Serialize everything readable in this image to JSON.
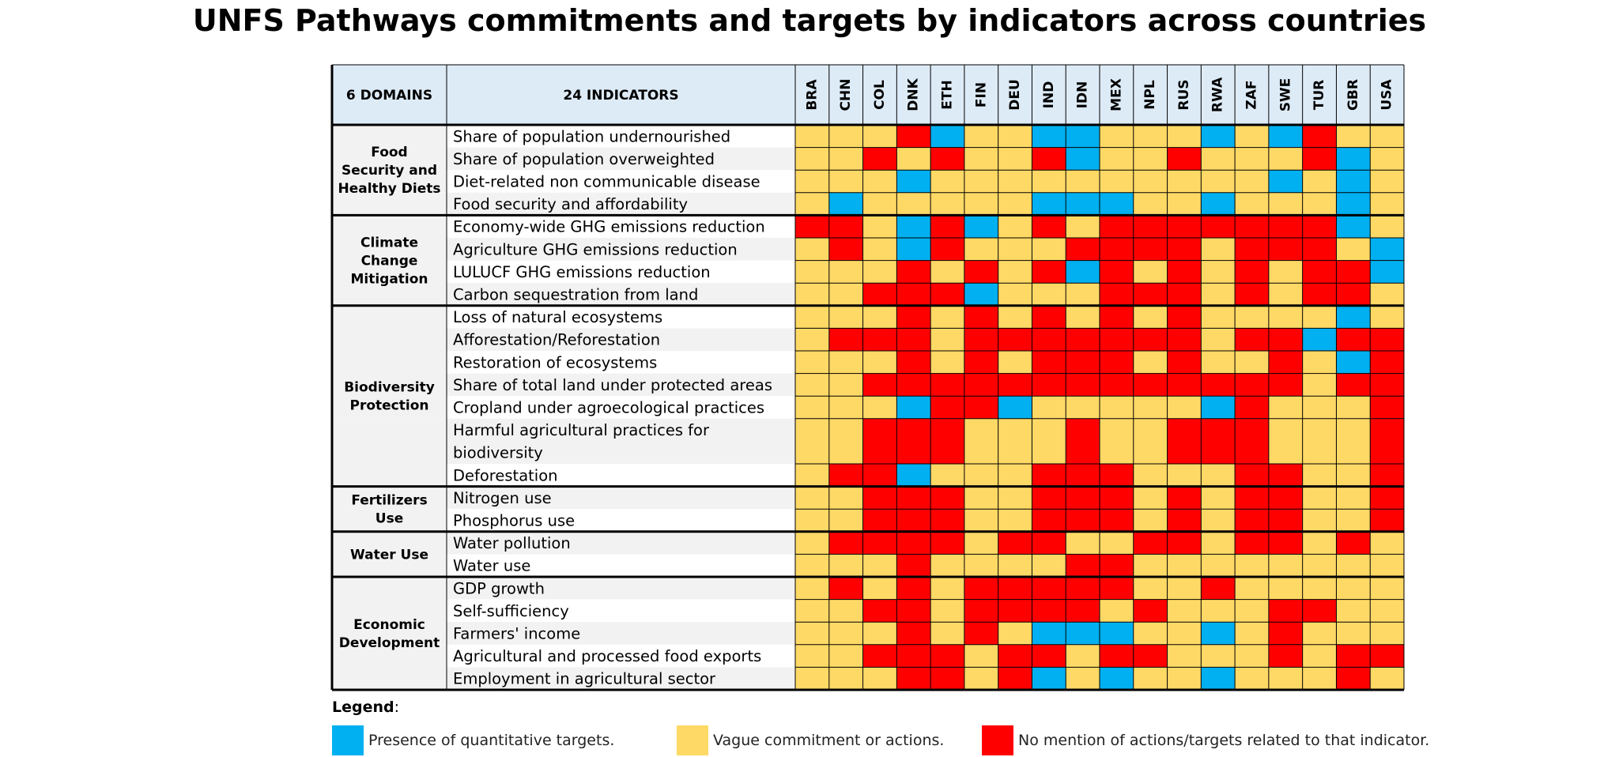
{
  "chart_data": {
    "type": "heatmap",
    "title": "UNFS Pathways commitments and targets by indicators across countries",
    "domains_header": "6 DOMAINS",
    "indicators_header": "24 INDICATORS",
    "countries": [
      "BRA",
      "CHN",
      "COL",
      "DNK",
      "ETH",
      "FIN",
      "DEU",
      "IND",
      "IDN",
      "MEX",
      "NPL",
      "RUS",
      "RWA",
      "ZAF",
      "SWE",
      "TUR",
      "GBR",
      "USA"
    ],
    "domains": [
      {
        "name": "Food Security and Healthy Diets",
        "lines": [
          "Food",
          "Security and",
          "Healthy Diets"
        ],
        "row_count": 4
      },
      {
        "name": "Climate Change Mitigation",
        "lines": [
          "Climate",
          "Change",
          "Mitigation"
        ],
        "row_count": 4
      },
      {
        "name": "Biodiversity Protection",
        "lines": [
          "Biodiversity",
          "Protection"
        ],
        "row_count": 7
      },
      {
        "name": "Fertilizers Use",
        "lines": [
          "Fertilizers",
          "Use"
        ],
        "row_count": 2
      },
      {
        "name": "Water Use",
        "lines": [
          "Water Use"
        ],
        "row_count": 2
      },
      {
        "name": "Economic Development",
        "lines": [
          "Economic",
          "Development"
        ],
        "row_count": 5
      }
    ],
    "legend_codes": [
      "Q",
      "V",
      "N"
    ],
    "colors": {
      "Q": "#00B0F0",
      "V": "#FFD966",
      "N": "#FF0000",
      "header_bg": "#DDEBF7",
      "row_alt": "#F2F2F2"
    },
    "indicators": [
      {
        "label": "Share of population undernourished",
        "lines": [
          "Share of population undernourished"
        ],
        "values": "VVVNQVVQQVVVQVQNVV"
      },
      {
        "label": "Share of population overweighted",
        "lines": [
          "Share of population overweighted"
        ],
        "values": "VVNVNVVNQVVNVVVNQV"
      },
      {
        "label": "Diet-related non communicable disease",
        "lines": [
          "Diet-related non communicable disease"
        ],
        "values": "VVVQVVVVVVVVVVQVQV"
      },
      {
        "label": "Food security and affordability",
        "lines": [
          "Food security and affordability"
        ],
        "values": "VQVVVVVQQQVVQVVVQV"
      },
      {
        "label": "Economy-wide GHG emissions reduction",
        "lines": [
          "Economy-wide GHG emissions reduction"
        ],
        "values": "NNVQNQVNVNNNNNNNQV"
      },
      {
        "label": "Agriculture GHG emissions reduction",
        "lines": [
          "Agriculture GHG emissions reduction"
        ],
        "values": "VNVQNVVVNNNNVNNNVQ"
      },
      {
        "label": "LULUCF GHG emissions reduction",
        "lines": [
          "LULUCF GHG emissions reduction"
        ],
        "values": "VVVNVNVNQNVNVNVNNQ"
      },
      {
        "label": "Carbon sequestration from land",
        "lines": [
          "Carbon sequestration from land"
        ],
        "values": "VVNNNQVVVNNNVNVNNV"
      },
      {
        "label": "Loss of natural ecosystems",
        "lines": [
          "Loss of natural ecosystems"
        ],
        "values": "VVVNVNVNVNVNVVVVQV"
      },
      {
        "label": "Afforestation/Reforestation",
        "lines": [
          "Afforestation/Reforestation"
        ],
        "values": "VNNNVNNNNNNNVNNQNN"
      },
      {
        "label": "Restoration of ecosystems",
        "lines": [
          "Restoration of ecosystems"
        ],
        "values": "VVVNVNVNNNVNVVNVQN"
      },
      {
        "label": "Share of total land under protected areas",
        "lines": [
          "Share of total land under protected areas"
        ],
        "values": "VVNNNNNNNNNNNNNVNN"
      },
      {
        "label": "Cropland under agroecological practices",
        "lines": [
          "Cropland under agroecological practices"
        ],
        "values": "VVVQNNQVVVVVQNVVVN"
      },
      {
        "label": "Harmful agricultural practices for biodiversity",
        "lines": [
          "Harmful agricultural practices for",
          "biodiversity"
        ],
        "values": "VVNNNVVVNVVNNNVVVN"
      },
      {
        "label": "Deforestation",
        "lines": [
          "Deforestation"
        ],
        "values": "VNNQVVVNNNVVVNNVVN"
      },
      {
        "label": "Nitrogen use",
        "lines": [
          "Nitrogen use"
        ],
        "values": "VVNNNVVNNNVNVNNVVN"
      },
      {
        "label": "Phosphorus use",
        "lines": [
          "Phosphorus use"
        ],
        "values": "VVNNNVVNNNVNVNNVVN"
      },
      {
        "label": "Water pollution",
        "lines": [
          "Water pollution"
        ],
        "values": "VNNNNVNNVVNNVNNVNV"
      },
      {
        "label": "Water use",
        "lines": [
          "Water use"
        ],
        "values": "VVVNVVVVNNVVVVVVVV"
      },
      {
        "label": "GDP growth",
        "lines": [
          "GDP growth"
        ],
        "values": "VNVNVNNNNNVVNVVVVV"
      },
      {
        "label": "Self-sufficiency",
        "lines": [
          "Self-sufficiency"
        ],
        "values": "VVNNVNNNNVNVVVNNVV"
      },
      {
        "label": "Farmers' income",
        "lines": [
          "Farmers' income"
        ],
        "values": "VVVNVNVQQQVVQVNVVV"
      },
      {
        "label": "Agricultural and processed food exports",
        "lines": [
          "Agricultural and processed food exports"
        ],
        "values": "VVNNNVNNVNNVVVNVNN"
      },
      {
        "label": "Employment in agricultural sector",
        "lines": [
          "Employment in agricultural sector"
        ],
        "values": "VVVNNVNQVQVVQVVVNV"
      }
    ]
  },
  "legend": {
    "title": "Legend",
    "items": [
      {
        "code": "Q",
        "label": "Presence of quantitative targets."
      },
      {
        "code": "V",
        "label": "Vague commitment or actions."
      },
      {
        "code": "N",
        "label": "No mention of actions/targets related to that indicator."
      }
    ]
  }
}
